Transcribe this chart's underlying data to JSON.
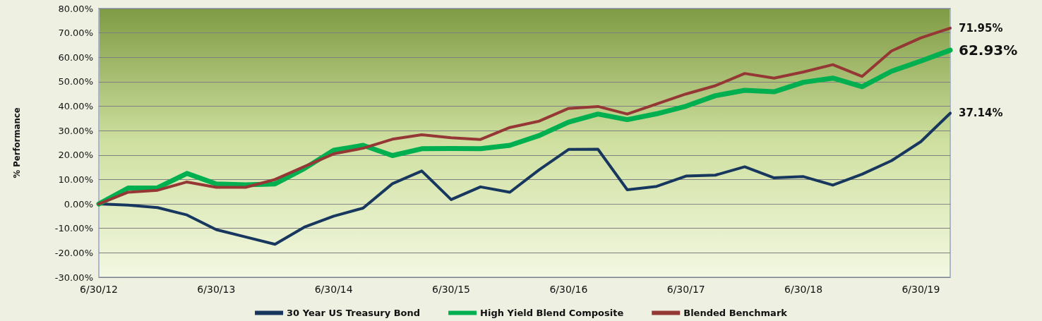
{
  "chart_data": {
    "type": "line",
    "ylabel": "% Performance",
    "categories": [
      "6/30/12",
      null,
      null,
      null,
      "6/30/13",
      null,
      null,
      null,
      "6/30/14",
      null,
      null,
      null,
      "6/30/15",
      null,
      null,
      null,
      "6/30/16",
      null,
      null,
      null,
      "6/30/17",
      null,
      null,
      null,
      "6/30/18",
      null,
      null,
      null,
      "6/30/19",
      null
    ],
    "series": [
      {
        "name": "30 Year US Treasury Bond",
        "color": "#17375e",
        "values": [
          0,
          -0.5,
          -1.5,
          -4.5,
          -10.5,
          -13.5,
          -16.5,
          -9.5,
          -5,
          -1.7,
          8.3,
          13.5,
          1.8,
          7,
          4.8,
          14,
          22.3,
          22.4,
          5.8,
          7.2,
          11.4,
          11.8,
          15.2,
          10.7,
          11.2,
          7.7,
          12.2,
          17.7,
          25.5,
          37.14
        ],
        "value_labels": [
          null,
          null,
          null,
          null,
          null,
          null,
          null,
          null,
          null,
          null,
          null,
          null,
          null,
          null,
          null,
          null,
          null,
          null,
          null,
          null,
          null,
          null,
          null,
          null,
          null,
          null,
          null,
          null,
          null,
          "37.14%"
        ]
      },
      {
        "name": "High Yield Blend Composite",
        "color": "#00b050",
        "values": [
          0,
          6.5,
          6.6,
          12.5,
          8.2,
          7.8,
          8.2,
          14.5,
          22,
          24,
          19.8,
          22.6,
          22.7,
          22.6,
          24,
          28,
          33.5,
          36.8,
          34.5,
          36.9,
          40,
          44.3,
          46.5,
          45.9,
          49.8,
          51.5,
          48,
          54.3,
          58.5,
          62.93
        ],
        "value_labels": [
          null,
          null,
          null,
          null,
          null,
          null,
          null,
          null,
          null,
          null,
          null,
          null,
          null,
          null,
          null,
          null,
          null,
          null,
          null,
          null,
          null,
          null,
          null,
          null,
          null,
          null,
          null,
          null,
          null,
          "62.93%"
        ]
      },
      {
        "name": "Blended Benchmark",
        "color": "#953735",
        "values": [
          0,
          4.8,
          5.6,
          9,
          6.8,
          6.8,
          10,
          15.3,
          20.5,
          22.8,
          26.5,
          28.3,
          27.1,
          26.4,
          31.3,
          33.9,
          39.1,
          39.9,
          36.8,
          40.9,
          45,
          48.4,
          53.4,
          51.5,
          54,
          57,
          52.2,
          62.6,
          68,
          71.95
        ],
        "value_labels": [
          null,
          null,
          null,
          null,
          null,
          null,
          null,
          null,
          null,
          null,
          null,
          null,
          null,
          null,
          null,
          null,
          null,
          null,
          null,
          null,
          null,
          null,
          null,
          null,
          null,
          null,
          null,
          null,
          null,
          "71.95%"
        ]
      }
    ],
    "ylim": [
      -30,
      80
    ],
    "yticks": [
      {
        "value": -30,
        "label": "-30.00%"
      },
      {
        "value": -20,
        "label": "-20.00%"
      },
      {
        "value": -10,
        "label": "-10.00%"
      },
      {
        "value": 0,
        "label": "0.00%"
      },
      {
        "value": 10,
        "label": "10.00%"
      },
      {
        "value": 20,
        "label": "20.00%"
      },
      {
        "value": 30,
        "label": "30.00%"
      },
      {
        "value": 40,
        "label": "40.00%"
      },
      {
        "value": 50,
        "label": "50.00%"
      },
      {
        "value": 60,
        "label": "60.00%"
      },
      {
        "value": 70,
        "label": "70.00%"
      },
      {
        "value": 80,
        "label": "80.00%"
      }
    ],
    "grid": "y",
    "legend": "bottom",
    "marker": "none",
    "line_style": "solid"
  }
}
